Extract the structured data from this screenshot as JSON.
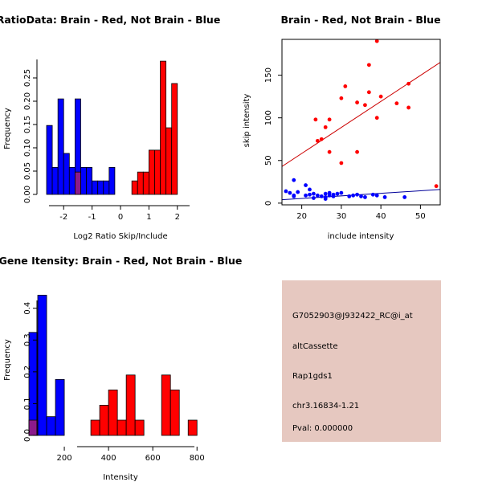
{
  "chart_data": [
    {
      "id": "ratio_hist",
      "type": "bar",
      "title": "RatioData: Brain - Red, Not Brain - Blue",
      "xlabel": "Log2 Ratio Skip/Include",
      "ylabel": "Frequency",
      "xlim": [
        -2.6,
        2.6
      ],
      "ylim": [
        0,
        0.3
      ],
      "xticks": [
        -2,
        -1,
        0,
        1,
        2
      ],
      "yticks": [
        0.0,
        0.05,
        0.1,
        0.15,
        0.2,
        0.25
      ],
      "bin_width": 0.2,
      "series": [
        {
          "name": "Not Brain",
          "color": "#0000ff",
          "bin_starts": [
            -2.6,
            -2.4,
            -2.2,
            -2.0,
            -1.8,
            -1.6,
            -1.4,
            -1.2,
            -1.0,
            -0.8,
            -0.6,
            -0.4,
            -0.2
          ],
          "values": [
            0.148,
            0.058,
            0.205,
            0.088,
            0.058,
            0.205,
            0.058,
            0.058,
            0.029,
            0.029,
            0.029,
            0.058,
            0.0
          ]
        },
        {
          "name": "Brain",
          "color": "#ff0000",
          "bin_starts": [
            -1.6,
            0.2,
            0.4,
            0.6,
            0.8,
            1.0,
            1.2,
            1.4,
            1.6,
            1.8,
            2.0
          ],
          "values": [
            0.048,
            0.0,
            0.029,
            0.048,
            0.048,
            0.095,
            0.095,
            0.286,
            0.143,
            0.238,
            0.0
          ]
        }
      ],
      "overlap_color": "#8b1a8b"
    },
    {
      "id": "scatter",
      "type": "scatter",
      "title": "Brain - Red, Not Brain - Blue",
      "xlabel": "include intensity",
      "ylabel": "skip intensity",
      "xlim": [
        15,
        55
      ],
      "ylim": [
        -2,
        192
      ],
      "xticks": [
        20,
        30,
        40,
        50
      ],
      "yticks": [
        0,
        50,
        100,
        150
      ],
      "series": [
        {
          "name": "Brain",
          "color": "#ff0000",
          "points": [
            [
              39,
              190
            ],
            [
              37,
              162
            ],
            [
              31,
              137
            ],
            [
              37,
              130
            ],
            [
              40,
              125
            ],
            [
              30,
              123
            ],
            [
              34,
              118
            ],
            [
              36,
              115
            ],
            [
              44,
              117
            ],
            [
              47,
              112
            ],
            [
              47,
              140
            ],
            [
              39,
              100
            ],
            [
              23.5,
              98
            ],
            [
              27,
              98
            ],
            [
              26,
              89
            ],
            [
              25,
              75
            ],
            [
              24,
              73
            ],
            [
              27,
              60
            ],
            [
              34,
              60
            ],
            [
              30,
              47
            ],
            [
              54,
              20
            ]
          ],
          "fit": {
            "x": [
              15,
              55
            ],
            "y": [
              43,
              165
            ]
          }
        },
        {
          "name": "Not Brain",
          "color": "#0000ff",
          "points": [
            [
              16,
              14
            ],
            [
              17,
              12
            ],
            [
              18,
              9
            ],
            [
              18,
              27
            ],
            [
              18,
              8
            ],
            [
              19,
              13
            ],
            [
              21,
              21
            ],
            [
              21,
              9
            ],
            [
              22,
              16
            ],
            [
              22,
              10
            ],
            [
              23,
              6
            ],
            [
              23,
              11
            ],
            [
              24,
              9
            ],
            [
              25,
              8
            ],
            [
              26,
              7
            ],
            [
              26,
              11
            ],
            [
              27,
              9
            ],
            [
              27,
              12
            ],
            [
              28,
              10
            ],
            [
              28,
              8
            ],
            [
              29,
              11
            ],
            [
              30,
              12
            ],
            [
              33,
              9
            ],
            [
              34,
              10
            ],
            [
              35,
              8
            ],
            [
              36,
              7
            ],
            [
              38,
              10
            ],
            [
              39,
              9
            ],
            [
              41,
              7
            ],
            [
              46,
              7
            ],
            [
              26,
              5
            ],
            [
              32,
              8
            ]
          ],
          "fit": {
            "x": [
              15,
              55
            ],
            "y": [
              4,
              16
            ]
          }
        }
      ]
    },
    {
      "id": "gene_hist",
      "type": "bar",
      "title": "Gene Itensity: Brain - Red, Not Brain - Blue",
      "xlabel": "Intensity",
      "ylabel": "Frequency",
      "xlim": [
        0,
        850
      ],
      "ylim": [
        0,
        0.47
      ],
      "xticks": [
        200,
        400,
        600,
        800
      ],
      "yticks": [
        0.0,
        0.1,
        0.2,
        0.3,
        0.4
      ],
      "bin_width": 40,
      "series": [
        {
          "name": "Not Brain",
          "color": "#0000ff",
          "bin_starts": [
            40,
            80,
            120,
            160
          ],
          "values": [
            0.324,
            0.441,
            0.059,
            0.176
          ]
        },
        {
          "name": "Brain",
          "color": "#ff0000",
          "bin_starts": [
            40,
            280,
            320,
            360,
            400,
            440,
            480,
            520,
            560,
            600,
            640,
            680,
            720,
            760
          ],
          "values": [
            0.048,
            0.0,
            0.048,
            0.095,
            0.143,
            0.048,
            0.19,
            0.048,
            0.0,
            0.0,
            0.19,
            0.143,
            0.0,
            0.048
          ]
        }
      ],
      "overlap_color": "#8b1a8b"
    }
  ],
  "info_panel": {
    "background": "#e6c8c0",
    "probe_id": "G7052903@J932422_RC@i_at",
    "event_type": "altCassette",
    "gene": "Rap1gds1",
    "location": "chr3.16834-1.21",
    "pval": "Pval: 0.000000",
    "pval_color": "#b00000"
  }
}
